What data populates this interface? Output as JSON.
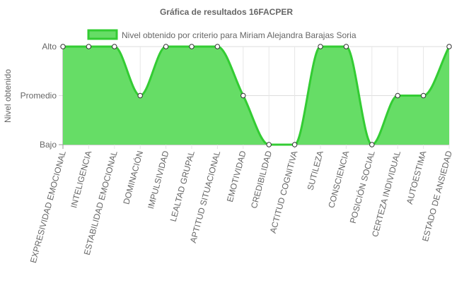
{
  "chart_data": {
    "type": "area",
    "title": "Gráfica de resultados 16FACPER",
    "ylabel": "Nivel obtenido",
    "xlabel": "",
    "y_levels": [
      "Bajo",
      "Promedio",
      "Alto"
    ],
    "ylim": [
      0,
      2
    ],
    "grid": true,
    "legend_position": "top",
    "categories": [
      "EXPRESIVIDAD EMOCIONAL",
      "INTELIGENCIA",
      "ESTABILIDAD EMOCIONAL",
      "DOMINACIÓN",
      "IMPULSIVIDAD",
      "LEALTAD GRUPAL",
      "APTITUD SITUACIONAL",
      "EMOTIVIDAD",
      "CREDIBILIDAD",
      "ACTITUD COGNITIVA",
      "SUTILEZA",
      "CONSCIENCIA",
      "POSICIÓN SOCIAL",
      "CERTEZA INDIVIDUAL",
      "AUTOESTIMA",
      "ESTADO DE ANSIEDAD"
    ],
    "series": [
      {
        "name": "Nivel obtenido por criterio para Miriam Alejandra Barajas Soria",
        "values": [
          2,
          2,
          2,
          1,
          2,
          2,
          2,
          1,
          0,
          0,
          2,
          2,
          0,
          1,
          1,
          2
        ],
        "fill_color": "#66dd66",
        "line_color": "#33cc33"
      }
    ]
  }
}
